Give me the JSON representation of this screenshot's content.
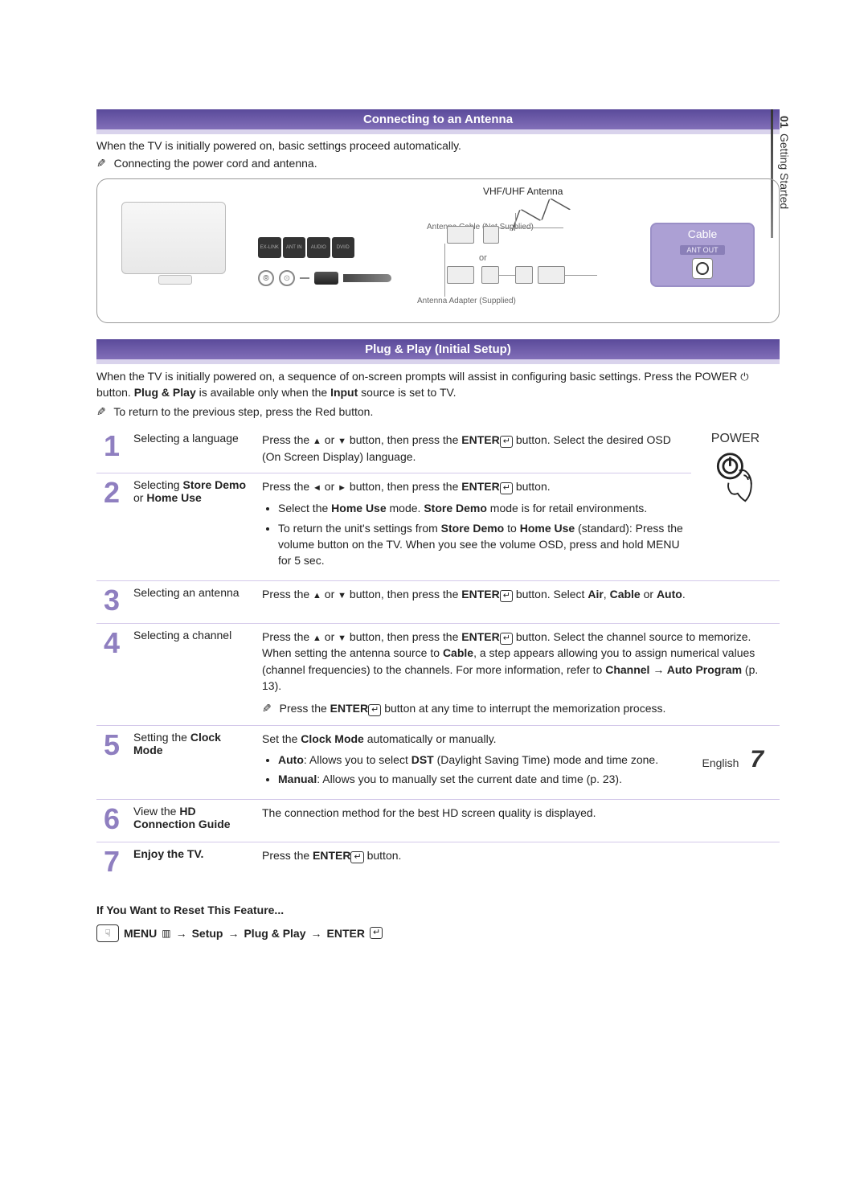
{
  "colors": {
    "header_bg_top": "#5a4a9a",
    "header_bg_bottom": "#826fb8",
    "header_underline": "#d9d3ec",
    "step_number": "#8f7fc0",
    "step_divider": "#d4c9ea",
    "cable_box_fill": "#aca0d4",
    "cable_box_border": "#9a8fc6",
    "text": "#222222",
    "background": "#ffffff"
  },
  "typography": {
    "body_pt": 14,
    "section_header_pt": 15,
    "step_number_pt": 36,
    "page_number_pt": 30,
    "font_family": "Arial"
  },
  "side_tab": {
    "chapter_num": "01",
    "chapter_title": "Getting Started"
  },
  "section1": {
    "title": "Connecting to an Antenna",
    "intro": "When the TV is initially powered on, basic settings proceed automatically.",
    "note": "Connecting the power cord and antenna.",
    "diagram": {
      "vhf_label": "VHF/UHF Antenna",
      "cable_label_1": "Antenna Cable (Not Supplied)",
      "adapter_label": "Antenna Adapter (Supplied)",
      "or": "or",
      "ports": [
        "EX-LINK",
        "ANT IN",
        "AUDIO",
        "DVI/D"
      ],
      "cable_box": {
        "title": "Cable",
        "sub": "ANT OUT"
      }
    }
  },
  "section2": {
    "title": "Plug & Play (Initial Setup)",
    "intro_1": "When the TV is initially powered on, a sequence of on-screen prompts will assist in configuring basic settings. Press the ",
    "intro_power_word": "POWER",
    "intro_2": " button. ",
    "intro_bold": "Plug & Play",
    "intro_3": " is available only when the ",
    "intro_bold2": "Input",
    "intro_4": " source is set to TV.",
    "note": "To return to the previous step, press the Red button.",
    "power_label": "POWER"
  },
  "steps": [
    {
      "n": "1",
      "title": "Selecting a language",
      "desc_html": "Press the <span class='tri'>▲</span> or <span class='tri'>▼</span> button, then press the <b>ENTER</b><span class='enter-icon'></span> button. Select the desired OSD (On Screen Display) language."
    },
    {
      "n": "2",
      "title_html": "Selecting <b>Store Demo</b> or <b>Home Use</b>",
      "desc_html": "Press the <span class='tri'>◄</span> or <span class='tri'>►</span> button, then press the <b>ENTER</b><span class='enter-icon'></span> button.<ul><li>Select the <b>Home Use</b> mode. <b>Store Demo</b> mode is for retail environments.</li><li>To return the unit's settings from <b>Store Demo</b> to <b>Home Use</b> (standard): Press the volume button on the TV. When you see the volume OSD, press and hold MENU for 5 sec.</li></ul>"
    },
    {
      "n": "3",
      "title": "Selecting an antenna",
      "desc_html": "Press the <span class='tri'>▲</span> or <span class='tri'>▼</span> button, then press the <b>ENTER</b><span class='enter-icon'></span> button. Select <b>Air</b>, <b>Cable</b> or <b>Auto</b>."
    },
    {
      "n": "4",
      "title": "Selecting a channel",
      "desc_html": "Press the <span class='tri'>▲</span> or <span class='tri'>▼</span> button, then press the <b>ENTER</b><span class='enter-icon'></span> button. Select the channel source to memorize. When setting the antenna source to <b>Cable</b>, a step appears allowing you to assign numerical values (channel frequencies) to the channels. For more information, refer to <b>Channel → Auto Program</b> (p. 13).<div style='margin-top:8px'><span class='note-icon'>✎</span> Press the <b>ENTER</b><span class='enter-icon'></span> button at any time to interrupt the memorization process.</div>"
    },
    {
      "n": "5",
      "title_html": "Setting the <b>Clock Mode</b>",
      "desc_html": "Set the <b>Clock Mode</b> automatically or manually.<ul><li><b>Auto</b>: Allows you to select <b>DST</b> (Daylight Saving Time) mode and time zone.</li><li><b>Manual</b>: Allows you to manually set the current date and time (p. 23).</li></ul>"
    },
    {
      "n": "6",
      "title_html": "View the <b>HD Connection Guide</b>",
      "desc_html": "The connection method for the best HD screen quality is displayed."
    },
    {
      "n": "7",
      "title_html": "<b>Enjoy the TV.</b>",
      "desc_html": "Press the <b>ENTER</b><span class='enter-icon'></span> button."
    }
  ],
  "reset": {
    "heading": "If You Want to Reset This Feature...",
    "path_parts": [
      "MENU",
      "Setup",
      "Plug & Play",
      "ENTER"
    ]
  },
  "footer": {
    "lang": "English",
    "page": "7"
  }
}
